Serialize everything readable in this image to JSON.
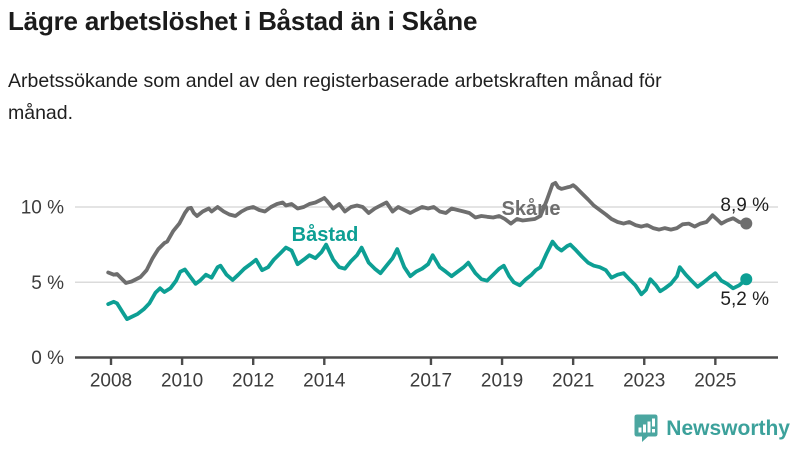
{
  "title": "Lägre arbetslöshet i Båstad än i Skåne",
  "subtitle": "Arbetssökande som andel av den registerbaserade arbetskraften månad för månad.",
  "branding": {
    "logo_text": "Newsworthy",
    "logo_icon": "bar-chart-speech-bubble-icon",
    "logo_color": "#4ba6a0",
    "logo_text_color": "#3ca19b"
  },
  "colors": {
    "skane_line": "#6e6e6e",
    "bastad_line": "#0d9f94",
    "gridline": "#dbdbdb",
    "axis": "#4b4b4b",
    "tick_label": "#3d3d3d",
    "value_label": "#1f1f1f"
  },
  "chart_data": {
    "type": "line",
    "title": "Lägre arbetslöshet i Båstad än i Skåne",
    "subtitle": "Arbetssökande som andel av den registerbaserade arbetskraften månad för månad.",
    "xlabel": "",
    "ylabel": "",
    "x_ticks": [
      2008,
      2010,
      2012,
      2014,
      2017,
      2019,
      2021,
      2023,
      2025
    ],
    "x_tick_labels": [
      "2008",
      "2010",
      "2012",
      "2014",
      "2017",
      "2019",
      "2021",
      "2023",
      "2025"
    ],
    "y_ticks": [
      0,
      5,
      10
    ],
    "y_tick_labels": [
      "0 %",
      "5 %",
      "10 %"
    ],
    "xlim": [
      2007.0,
      2026.8
    ],
    "ylim": [
      0,
      13.1
    ],
    "grid": "horizontal-at-5-and-10",
    "legend_position": "inline-labels-on-lines",
    "series": [
      {
        "name": "Skåne",
        "color": "#6e6e6e",
        "end_value_label": "8,9 %",
        "end_value": 8.9,
        "points": [
          [
            2007.92,
            5.65
          ],
          [
            2008.08,
            5.5
          ],
          [
            2008.17,
            5.55
          ],
          [
            2008.42,
            4.95
          ],
          [
            2008.58,
            5.05
          ],
          [
            2008.83,
            5.35
          ],
          [
            2009.0,
            5.8
          ],
          [
            2009.17,
            6.6
          ],
          [
            2009.33,
            7.2
          ],
          [
            2009.5,
            7.6
          ],
          [
            2009.58,
            7.7
          ],
          [
            2009.75,
            8.4
          ],
          [
            2009.92,
            8.9
          ],
          [
            2010.08,
            9.6
          ],
          [
            2010.17,
            9.9
          ],
          [
            2010.25,
            9.95
          ],
          [
            2010.33,
            9.6
          ],
          [
            2010.42,
            9.4
          ],
          [
            2010.58,
            9.7
          ],
          [
            2010.75,
            9.9
          ],
          [
            2010.83,
            9.7
          ],
          [
            2011.0,
            10.0
          ],
          [
            2011.17,
            9.7
          ],
          [
            2011.33,
            9.5
          ],
          [
            2011.5,
            9.4
          ],
          [
            2011.67,
            9.7
          ],
          [
            2011.83,
            9.9
          ],
          [
            2012.0,
            10.0
          ],
          [
            2012.17,
            9.8
          ],
          [
            2012.33,
            9.7
          ],
          [
            2012.5,
            10.0
          ],
          [
            2012.67,
            10.2
          ],
          [
            2012.83,
            10.3
          ],
          [
            2012.92,
            10.1
          ],
          [
            2013.08,
            10.2
          ],
          [
            2013.25,
            9.9
          ],
          [
            2013.42,
            10.0
          ],
          [
            2013.58,
            10.2
          ],
          [
            2013.75,
            10.3
          ],
          [
            2013.92,
            10.5
          ],
          [
            2014.0,
            10.6
          ],
          [
            2014.08,
            10.4
          ],
          [
            2014.25,
            9.9
          ],
          [
            2014.42,
            10.2
          ],
          [
            2014.58,
            9.7
          ],
          [
            2014.75,
            10.0
          ],
          [
            2014.92,
            10.1
          ],
          [
            2015.08,
            10.0
          ],
          [
            2015.25,
            9.6
          ],
          [
            2015.42,
            9.9
          ],
          [
            2015.58,
            10.1
          ],
          [
            2015.75,
            10.3
          ],
          [
            2015.92,
            9.7
          ],
          [
            2016.08,
            10.0
          ],
          [
            2016.25,
            9.8
          ],
          [
            2016.42,
            9.6
          ],
          [
            2016.58,
            9.8
          ],
          [
            2016.75,
            10.0
          ],
          [
            2016.92,
            9.9
          ],
          [
            2017.08,
            10.0
          ],
          [
            2017.25,
            9.7
          ],
          [
            2017.42,
            9.6
          ],
          [
            2017.58,
            9.9
          ],
          [
            2017.75,
            9.8
          ],
          [
            2017.92,
            9.7
          ],
          [
            2018.08,
            9.6
          ],
          [
            2018.25,
            9.3
          ],
          [
            2018.42,
            9.4
          ],
          [
            2018.58,
            9.35
          ],
          [
            2018.75,
            9.3
          ],
          [
            2018.92,
            9.4
          ],
          [
            2019.08,
            9.2
          ],
          [
            2019.25,
            8.9
          ],
          [
            2019.42,
            9.2
          ],
          [
            2019.58,
            9.1
          ],
          [
            2019.75,
            9.15
          ],
          [
            2019.92,
            9.2
          ],
          [
            2020.08,
            9.4
          ],
          [
            2020.25,
            10.4
          ],
          [
            2020.42,
            11.5
          ],
          [
            2020.5,
            11.6
          ],
          [
            2020.58,
            11.3
          ],
          [
            2020.67,
            11.2
          ],
          [
            2020.83,
            11.3
          ],
          [
            2020.92,
            11.35
          ],
          [
            2021.0,
            11.45
          ],
          [
            2021.08,
            11.3
          ],
          [
            2021.25,
            10.9
          ],
          [
            2021.42,
            10.5
          ],
          [
            2021.58,
            10.1
          ],
          [
            2021.75,
            9.8
          ],
          [
            2021.92,
            9.5
          ],
          [
            2022.08,
            9.2
          ],
          [
            2022.25,
            9.0
          ],
          [
            2022.42,
            8.9
          ],
          [
            2022.58,
            9.0
          ],
          [
            2022.75,
            8.8
          ],
          [
            2022.92,
            8.7
          ],
          [
            2023.08,
            8.8
          ],
          [
            2023.25,
            8.6
          ],
          [
            2023.42,
            8.5
          ],
          [
            2023.58,
            8.6
          ],
          [
            2023.75,
            8.5
          ],
          [
            2023.92,
            8.6
          ],
          [
            2024.08,
            8.85
          ],
          [
            2024.25,
            8.9
          ],
          [
            2024.42,
            8.7
          ],
          [
            2024.58,
            8.9
          ],
          [
            2024.75,
            9.0
          ],
          [
            2024.92,
            9.45
          ],
          [
            2025.08,
            9.1
          ],
          [
            2025.17,
            8.9
          ],
          [
            2025.33,
            9.1
          ],
          [
            2025.5,
            9.25
          ],
          [
            2025.67,
            9.0
          ],
          [
            2025.87,
            8.9
          ]
        ]
      },
      {
        "name": "Båstad",
        "color": "#0d9f94",
        "end_value_label": "5,2 %",
        "end_value": 5.2,
        "points": [
          [
            2007.92,
            3.55
          ],
          [
            2008.08,
            3.7
          ],
          [
            2008.17,
            3.6
          ],
          [
            2008.33,
            3.0
          ],
          [
            2008.45,
            2.55
          ],
          [
            2008.58,
            2.7
          ],
          [
            2008.75,
            2.9
          ],
          [
            2008.92,
            3.2
          ],
          [
            2009.08,
            3.6
          ],
          [
            2009.25,
            4.3
          ],
          [
            2009.38,
            4.6
          ],
          [
            2009.5,
            4.35
          ],
          [
            2009.67,
            4.6
          ],
          [
            2009.83,
            5.1
          ],
          [
            2009.95,
            5.7
          ],
          [
            2010.08,
            5.85
          ],
          [
            2010.25,
            5.3
          ],
          [
            2010.38,
            4.9
          ],
          [
            2010.5,
            5.1
          ],
          [
            2010.67,
            5.5
          ],
          [
            2010.83,
            5.3
          ],
          [
            2011.0,
            6.0
          ],
          [
            2011.08,
            6.1
          ],
          [
            2011.25,
            5.5
          ],
          [
            2011.42,
            5.15
          ],
          [
            2011.58,
            5.5
          ],
          [
            2011.75,
            5.9
          ],
          [
            2011.92,
            6.2
          ],
          [
            2012.08,
            6.5
          ],
          [
            2012.25,
            5.8
          ],
          [
            2012.42,
            6.0
          ],
          [
            2012.58,
            6.5
          ],
          [
            2012.75,
            6.9
          ],
          [
            2012.92,
            7.3
          ],
          [
            2013.08,
            7.1
          ],
          [
            2013.25,
            6.2
          ],
          [
            2013.42,
            6.5
          ],
          [
            2013.58,
            6.8
          ],
          [
            2013.75,
            6.6
          ],
          [
            2013.92,
            7.0
          ],
          [
            2014.05,
            7.5
          ],
          [
            2014.25,
            6.5
          ],
          [
            2014.42,
            6.0
          ],
          [
            2014.58,
            5.9
          ],
          [
            2014.75,
            6.4
          ],
          [
            2014.92,
            6.8
          ],
          [
            2015.05,
            7.3
          ],
          [
            2015.25,
            6.3
          ],
          [
            2015.42,
            5.9
          ],
          [
            2015.58,
            5.6
          ],
          [
            2015.75,
            6.1
          ],
          [
            2015.92,
            6.6
          ],
          [
            2016.05,
            7.2
          ],
          [
            2016.25,
            6.0
          ],
          [
            2016.42,
            5.4
          ],
          [
            2016.58,
            5.7
          ],
          [
            2016.75,
            5.9
          ],
          [
            2016.92,
            6.2
          ],
          [
            2017.05,
            6.8
          ],
          [
            2017.25,
            6.0
          ],
          [
            2017.42,
            5.7
          ],
          [
            2017.58,
            5.4
          ],
          [
            2017.75,
            5.7
          ],
          [
            2017.92,
            6.0
          ],
          [
            2018.05,
            6.3
          ],
          [
            2018.25,
            5.6
          ],
          [
            2018.42,
            5.2
          ],
          [
            2018.58,
            5.1
          ],
          [
            2018.75,
            5.5
          ],
          [
            2018.92,
            5.9
          ],
          [
            2019.05,
            6.1
          ],
          [
            2019.2,
            5.4
          ],
          [
            2019.33,
            5.0
          ],
          [
            2019.5,
            4.8
          ],
          [
            2019.67,
            5.2
          ],
          [
            2019.83,
            5.5
          ],
          [
            2019.95,
            5.8
          ],
          [
            2020.08,
            6.0
          ],
          [
            2020.25,
            6.9
          ],
          [
            2020.42,
            7.7
          ],
          [
            2020.55,
            7.3
          ],
          [
            2020.67,
            7.1
          ],
          [
            2020.83,
            7.4
          ],
          [
            2020.92,
            7.5
          ],
          [
            2021.05,
            7.2
          ],
          [
            2021.25,
            6.7
          ],
          [
            2021.42,
            6.3
          ],
          [
            2021.58,
            6.1
          ],
          [
            2021.75,
            6.0
          ],
          [
            2021.92,
            5.8
          ],
          [
            2022.08,
            5.3
          ],
          [
            2022.25,
            5.5
          ],
          [
            2022.42,
            5.6
          ],
          [
            2022.58,
            5.2
          ],
          [
            2022.75,
            4.8
          ],
          [
            2022.92,
            4.2
          ],
          [
            2023.05,
            4.5
          ],
          [
            2023.17,
            5.2
          ],
          [
            2023.33,
            4.8
          ],
          [
            2023.45,
            4.4
          ],
          [
            2023.58,
            4.6
          ],
          [
            2023.75,
            4.9
          ],
          [
            2023.92,
            5.4
          ],
          [
            2024.0,
            6.0
          ],
          [
            2024.17,
            5.5
          ],
          [
            2024.33,
            5.1
          ],
          [
            2024.5,
            4.7
          ],
          [
            2024.67,
            5.0
          ],
          [
            2024.83,
            5.3
          ],
          [
            2025.0,
            5.6
          ],
          [
            2025.17,
            5.1
          ],
          [
            2025.33,
            4.9
          ],
          [
            2025.5,
            4.6
          ],
          [
            2025.67,
            4.8
          ],
          [
            2025.87,
            5.2
          ]
        ]
      }
    ]
  }
}
